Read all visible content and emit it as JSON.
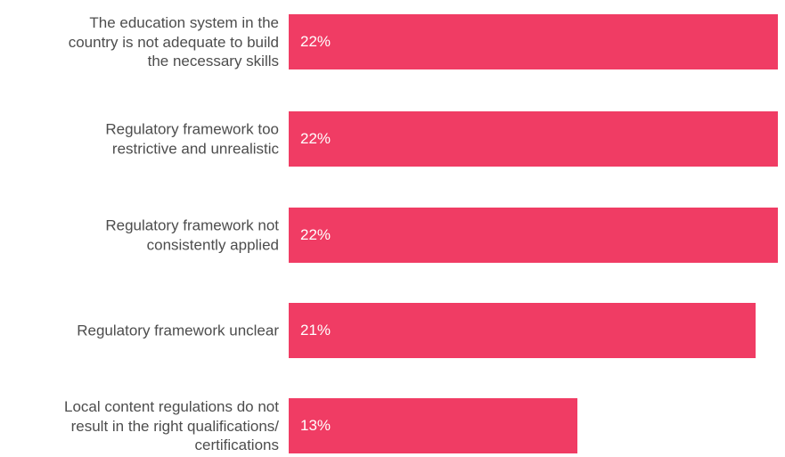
{
  "chart_data": {
    "type": "bar",
    "orientation": "horizontal",
    "categories": [
      "The education system in the country is not adequate to build the necessary skills",
      "Regulatory framework too restrictive and unrealistic",
      "Regulatory framework not consistently applied",
      "Regulatory framework unclear",
      "Local content regulations do not result in the right qualifications/ certifications"
    ],
    "category_lines": [
      [
        "The education system in the",
        "country is not adequate to build",
        "the necessary skills"
      ],
      [
        "Regulatory framework too",
        "restrictive and unrealistic"
      ],
      [
        "Regulatory framework not",
        "consistently applied"
      ],
      [
        "Regulatory framework unclear"
      ],
      [
        "Local content regulations do not",
        "result in the right qualifications/",
        "certifications"
      ]
    ],
    "values": [
      22,
      22,
      22,
      21,
      13
    ],
    "value_labels": [
      "22%",
      "22%",
      "22%",
      "21%",
      "13%"
    ],
    "xlim": [
      0,
      22.3
    ],
    "grid": false,
    "legend": "none",
    "bar_color": "#f03c64",
    "label_color": "#4d4d4d",
    "value_label_color": "#ffffff"
  }
}
